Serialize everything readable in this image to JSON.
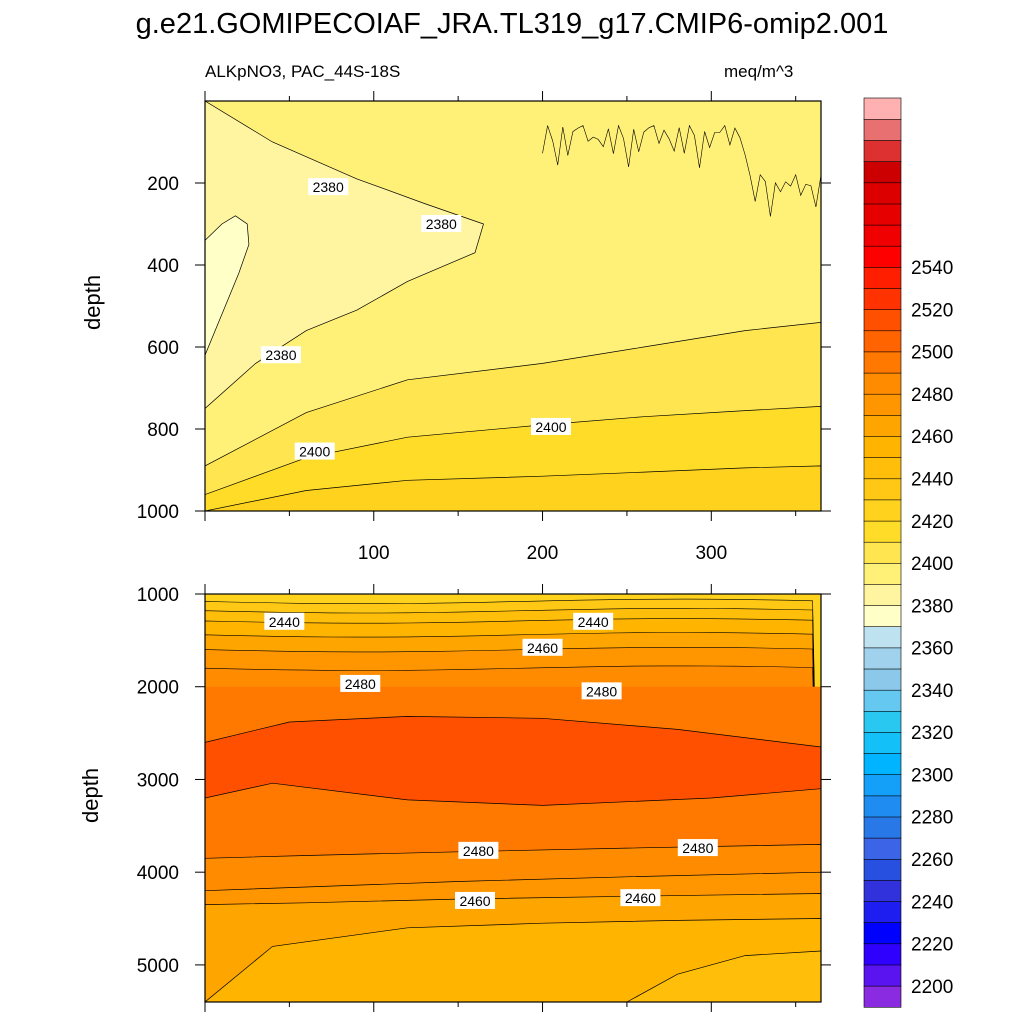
{
  "figure": {
    "title": "g.e21.GOMIPECOIAF_JRA.TL319_g17.CMIP6-omip2.001",
    "left_subtitle": "ALKpNO3, PAC_44S-18S",
    "right_subtitle": "meq/m^3"
  },
  "chart_data": [
    {
      "type": "heatmap",
      "panel": "upper",
      "ylabel": "depth",
      "xlim": [
        0,
        365
      ],
      "ylim": [
        1000,
        0
      ],
      "y_reversed": true,
      "x_ticks": [
        100,
        200,
        300
      ],
      "y_ticks": [
        200,
        400,
        600,
        800,
        1000
      ],
      "contour_labels": [
        {
          "text": "2380",
          "x": 73,
          "y": 210
        },
        {
          "text": "2380",
          "x": 140,
          "y": 300
        },
        {
          "text": "2380",
          "x": 45,
          "y": 620
        },
        {
          "text": "2400",
          "x": 65,
          "y": 855
        },
        {
          "text": "2400",
          "x": 205,
          "y": 795
        }
      ],
      "regions": [
        {
          "level": 2360,
          "x": [
            0,
            10,
            20,
            26,
            25,
            18,
            10,
            0
          ],
          "y": [
            620,
            520,
            420,
            350,
            300,
            280,
            300,
            340
          ]
        },
        {
          "level": 2380,
          "x": [
            0,
            30,
            60,
            90,
            120,
            160,
            165,
            130,
            90,
            40,
            0
          ],
          "y": [
            750,
            640,
            560,
            510,
            440,
            370,
            300,
            250,
            190,
            100,
            0
          ]
        },
        {
          "level": 2390,
          "x": [
            0,
            60,
            120,
            200,
            260,
            320,
            365
          ],
          "y": [
            890,
            760,
            680,
            640,
            600,
            560,
            540
          ]
        },
        {
          "level": 2400,
          "x": [
            0,
            60,
            120,
            200,
            260,
            320,
            365
          ],
          "y": [
            960,
            870,
            820,
            790,
            770,
            755,
            745
          ]
        },
        {
          "level": 2410,
          "x": [
            0,
            60,
            120,
            200,
            260,
            320,
            365
          ],
          "y": [
            1000,
            950,
            925,
            915,
            905,
            895,
            890
          ]
        }
      ]
    },
    {
      "type": "heatmap",
      "panel": "lower",
      "ylabel": "depth",
      "xlim": [
        0,
        365
      ],
      "ylim": [
        5400,
        1000
      ],
      "y_reversed": true,
      "y_ticks": [
        1000,
        2000,
        3000,
        4000,
        5000
      ],
      "contour_labels": [
        {
          "text": "2440",
          "x": 47,
          "y": 1300
        },
        {
          "text": "2440",
          "x": 230,
          "y": 1300
        },
        {
          "text": "2460",
          "x": 200,
          "y": 1580
        },
        {
          "text": "2480",
          "x": 92,
          "y": 1970
        },
        {
          "text": "2480",
          "x": 235,
          "y": 2050
        },
        {
          "text": "2480",
          "x": 162,
          "y": 3770
        },
        {
          "text": "2480",
          "x": 292,
          "y": 3740
        },
        {
          "text": "2460",
          "x": 160,
          "y": 4310
        },
        {
          "text": "2460",
          "x": 258,
          "y": 4280
        }
      ],
      "level_lines": [
        {
          "level": 2420,
          "y": 1080
        },
        {
          "level": 2430,
          "y": 1180
        },
        {
          "level": 2440,
          "y": 1290
        },
        {
          "level": 2450,
          "y": 1440
        },
        {
          "level": 2460,
          "y": 1600
        },
        {
          "level": 2470,
          "y": 1800
        }
      ],
      "core_2500": {
        "x": [
          0,
          50,
          120,
          200,
          280,
          365,
          365,
          300,
          200,
          120,
          40,
          0
        ],
        "y": [
          2600,
          2380,
          2320,
          2340,
          2460,
          2650,
          3100,
          3200,
          3280,
          3220,
          3040,
          3200
        ]
      },
      "deep_lines": [
        {
          "level": 2480,
          "x": [
            0,
            60,
            150,
            250,
            365
          ],
          "y": [
            3850,
            3820,
            3780,
            3740,
            3700
          ]
        },
        {
          "level": 2470,
          "x": [
            0,
            60,
            150,
            250,
            365
          ],
          "y": [
            4200,
            4160,
            4100,
            4050,
            4000
          ]
        },
        {
          "level": 2460,
          "x": [
            0,
            60,
            150,
            250,
            365
          ],
          "y": [
            4350,
            4330,
            4290,
            4260,
            4230
          ]
        },
        {
          "level": 2450,
          "x": [
            0,
            40,
            120,
            200,
            280,
            365
          ],
          "y": [
            5400,
            4800,
            4600,
            4550,
            4520,
            4500
          ]
        },
        {
          "level": 2440,
          "x": [
            250,
            280,
            320,
            365
          ],
          "y": [
            5400,
            5100,
            4900,
            4850
          ]
        }
      ]
    }
  ],
  "colorbar": {
    "levels": [
      2200,
      2220,
      2240,
      2260,
      2280,
      2300,
      2320,
      2340,
      2360,
      2380,
      2400,
      2420,
      2440,
      2460,
      2480,
      2500,
      2520,
      2540
    ],
    "tick_labels": [
      "2200",
      "2220",
      "2240",
      "2260",
      "2280",
      "2300",
      "2320",
      "2340",
      "2360",
      "2380",
      "2400",
      "2420",
      "2440",
      "2460",
      "2480",
      "2500",
      "2520",
      "2540"
    ],
    "colors": [
      "#8a2be2",
      "#5a14f0",
      "#3000ff",
      "#0000ff",
      "#1e1ef0",
      "#3232dc",
      "#2850e0",
      "#3c64e6",
      "#2878e8",
      "#1e8cf0",
      "#14a0f8",
      "#00b4ff",
      "#14c0f8",
      "#28c8f0",
      "#64c8f0",
      "#8cc8ea",
      "#a0d2ee",
      "#bee2f0",
      "#ffffc8",
      "#fff5a0",
      "#fff078",
      "#ffe650",
      "#ffdc28",
      "#ffd21e",
      "#ffc814",
      "#ffbe0a",
      "#ffb400",
      "#ffa500",
      "#ff9600",
      "#ff8c00",
      "#ff7800",
      "#ff6400",
      "#ff5000",
      "#ff3200",
      "#ff1e00",
      "#ff0000",
      "#f00000",
      "#e60000",
      "#dc0000",
      "#cc0000",
      "#dd3030",
      "#e87070",
      "#ffb0b0"
    ]
  }
}
